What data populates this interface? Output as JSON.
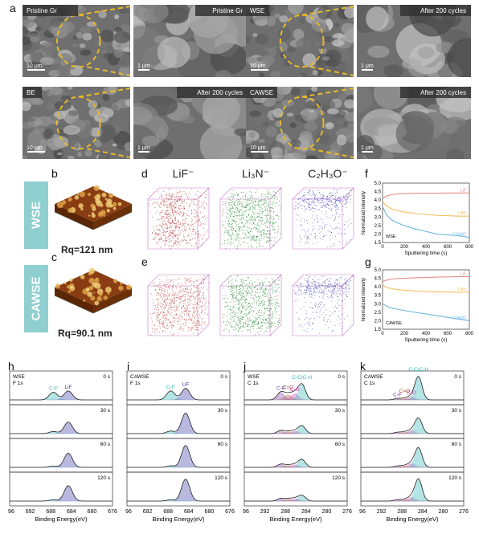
{
  "panel_labels": {
    "a": "a",
    "b": "b",
    "c": "c",
    "d": "d",
    "e": "e",
    "f": "f",
    "g": "g",
    "h": "h",
    "i": "i",
    "j": "j",
    "k": "k"
  },
  "sem": [
    {
      "left_tag": "Pristine Gr",
      "right_tag": "Pristine Gr",
      "left_scale": "10 μm",
      "right_scale": "1 μm"
    },
    {
      "left_tag": "WSE",
      "right_tag": "After 200 cycles",
      "left_scale": "10 μm",
      "right_scale": "1 μm"
    },
    {
      "left_tag": "BE",
      "right_tag": "After 200 cycles",
      "left_scale": "10 μm",
      "right_scale": "1 μm"
    },
    {
      "left_tag": "CAWSE",
      "right_tag": "After 200 cycles",
      "left_scale": "10 μm",
      "right_scale": "1 μm"
    }
  ],
  "afm": {
    "wse_label": "WSE",
    "cawse_label": "CAWSE",
    "wse_rq": "Rq=121 nm",
    "cawse_rq": "Rq=90.1 nm"
  },
  "tof": {
    "headers": [
      "LiF⁻",
      "Li₃N⁻",
      "C₂H₃O⁻"
    ]
  },
  "colors": {
    "lif": "#e58d87",
    "li3n": "#f0c060",
    "c2h3o": "#6fb6dd",
    "red": "#b22222",
    "green": "#2e8b3a",
    "blue": "#2f2fb0"
  },
  "chart_data": [
    {
      "type": "line",
      "panel": "f",
      "sample": "WSE",
      "xlabel": "Sputtering time (s)",
      "ylabel": "Normalized intensity",
      "xlim": [
        0,
        800
      ],
      "ylim": [
        1.5,
        5.0
      ],
      "xticks": [
        0,
        200,
        400,
        600,
        800
      ],
      "yticks": [
        1.5,
        2.0,
        2.5,
        3.0,
        3.5,
        4.0,
        4.5,
        5.0
      ],
      "x": [
        0,
        40,
        80,
        120,
        200,
        300,
        400,
        500,
        600,
        700,
        800
      ],
      "series": [
        {
          "name": "LiF",
          "color": "#e58d87",
          "values": [
            4.1,
            4.25,
            4.32,
            4.35,
            4.38,
            4.4,
            4.4,
            4.4,
            4.42,
            4.42,
            4.42
          ]
        },
        {
          "name": "Li3N",
          "color": "#f0c060",
          "values": [
            3.9,
            3.65,
            3.5,
            3.4,
            3.3,
            3.22,
            3.15,
            3.1,
            3.08,
            3.05,
            3.05
          ]
        },
        {
          "name": "C2H3O",
          "color": "#6fb6dd",
          "values": [
            3.6,
            3.1,
            2.85,
            2.7,
            2.5,
            2.3,
            2.15,
            2.0,
            1.95,
            1.9,
            1.8
          ]
        }
      ],
      "legend_tag": "WSE"
    },
    {
      "type": "line",
      "panel": "g",
      "sample": "CAWSE",
      "xlabel": "Sputtering time (s)",
      "ylabel": "Normalized intensity",
      "xlim": [
        0,
        800
      ],
      "ylim": [
        1.5,
        5.0
      ],
      "xticks": [
        0,
        200,
        400,
        600,
        800
      ],
      "yticks": [
        1.5,
        2.0,
        2.5,
        3.0,
        3.5,
        4.0,
        4.5,
        5.0
      ],
      "x": [
        0,
        40,
        80,
        120,
        200,
        300,
        400,
        500,
        600,
        700,
        800
      ],
      "series": [
        {
          "name": "LiF",
          "color": "#e58d87",
          "values": [
            4.3,
            4.4,
            4.45,
            4.48,
            4.5,
            4.53,
            4.55,
            4.57,
            4.58,
            4.6,
            4.6
          ]
        },
        {
          "name": "Li3N",
          "color": "#f0c060",
          "values": [
            4.1,
            3.95,
            3.9,
            3.85,
            3.8,
            3.75,
            3.72,
            3.7,
            3.7,
            3.68,
            3.68
          ]
        },
        {
          "name": "C2H3O",
          "color": "#6fb6dd",
          "values": [
            3.0,
            2.85,
            2.75,
            2.7,
            2.6,
            2.5,
            2.4,
            2.3,
            2.2,
            2.1,
            2.0
          ]
        }
      ],
      "legend_tag": "CAWSE"
    },
    {
      "type": "line",
      "panel": "h",
      "tag1": "WSE",
      "tag2": "F 1s",
      "xlabel": "Binding Energy(eV)",
      "xlim": [
        696,
        676
      ],
      "xticks": [
        696,
        692,
        688,
        684,
        680,
        676
      ],
      "times": [
        "0 s",
        "30 s",
        "60 s",
        "120 s"
      ],
      "peak_labels": [
        "C-F",
        "LiF"
      ],
      "peaks": [
        {
          "pos": 687.5,
          "amp": [
            0.3,
            0.08,
            0.05,
            0.05
          ]
        },
        {
          "pos": 684.6,
          "amp": [
            0.35,
            0.45,
            0.55,
            0.6
          ]
        }
      ]
    },
    {
      "type": "line",
      "panel": "i",
      "tag1": "CAWSE",
      "tag2": "F 1s",
      "xlabel": "Binding Energy(eV)",
      "xlim": [
        696,
        676
      ],
      "xticks": [
        696,
        692,
        688,
        684,
        680,
        676
      ],
      "times": [
        "0 s",
        "30 s",
        "60 s",
        "120 s"
      ],
      "peak_labels": [
        "C-F",
        "LiF"
      ],
      "peaks": [
        {
          "pos": 687.5,
          "amp": [
            0.35,
            0.1,
            0.06,
            0.05
          ]
        },
        {
          "pos": 684.6,
          "amp": [
            0.45,
            0.8,
            0.85,
            0.85
          ]
        }
      ]
    },
    {
      "type": "line",
      "panel": "j",
      "tag1": "WSE",
      "tag2": "C 1s",
      "xlabel": "Binding Energy(eV)",
      "xlim": [
        296,
        276
      ],
      "xticks": [
        296,
        292,
        288,
        284,
        280,
        276
      ],
      "times": [
        "0 s",
        "30 s",
        "60 s",
        "120 s"
      ],
      "peak_labels": [
        "C-F",
        "C=O",
        "C-O",
        "C-C/C-H"
      ],
      "peaks": [
        {
          "pos": 288.9,
          "amp": [
            0.3,
            0.12,
            0.12,
            0.1
          ]
        },
        {
          "pos": 287.5,
          "amp": [
            0.2,
            0.08,
            0.08,
            0.08
          ]
        },
        {
          "pos": 286.2,
          "amp": [
            0.25,
            0.1,
            0.1,
            0.1
          ]
        },
        {
          "pos": 284.8,
          "amp": [
            0.6,
            0.3,
            0.3,
            0.22
          ]
        }
      ]
    },
    {
      "type": "line",
      "panel": "k",
      "tag1": "CAWSE",
      "tag2": "C 1s",
      "xlabel": "Binding Energy(eV)",
      "xlim": [
        296,
        276
      ],
      "xticks": [
        296,
        292,
        288,
        284,
        280,
        276
      ],
      "times": [
        "0 s",
        "30 s",
        "60 s",
        "120 s"
      ],
      "peak_labels": [
        "C-F",
        "C=O",
        "C-O",
        "C-C/C-H"
      ],
      "peaks": [
        {
          "pos": 288.9,
          "amp": [
            0.05,
            0.05,
            0.05,
            0.05
          ]
        },
        {
          "pos": 287.5,
          "amp": [
            0.06,
            0.06,
            0.06,
            0.06
          ]
        },
        {
          "pos": 286.2,
          "amp": [
            0.12,
            0.12,
            0.15,
            0.15
          ]
        },
        {
          "pos": 284.8,
          "amp": [
            0.9,
            0.6,
            0.75,
            0.85
          ]
        }
      ]
    }
  ]
}
